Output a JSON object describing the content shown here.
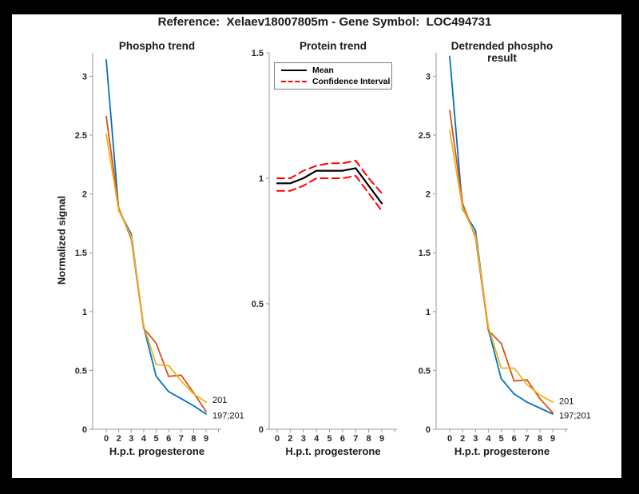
{
  "window": {
    "background": "#000000",
    "figure_background": "#ffffff"
  },
  "header": {
    "title": "Reference:  Xelaev18007805m - Gene Symbol:  LOC494731"
  },
  "colors": {
    "series_blue": "#0072BD",
    "series_orange": "#D95319",
    "series_yellow": "#EDB120",
    "mean_line": "#000000",
    "confidence_interval": "#FF0000",
    "axis_line": "#999999",
    "tick_text": "#262626"
  },
  "chart_data": [
    {
      "type": "line",
      "title": "Phospho trend",
      "xlabel": "H.p.t. progesterone",
      "ylabel": "Normalized signal",
      "categories": [
        "0",
        "2",
        "3",
        "4",
        "5",
        "6",
        "7",
        "8",
        "9"
      ],
      "ylim": [
        0,
        3.2
      ],
      "yticks": [
        "0",
        "0.5",
        "1",
        "1.5",
        "2",
        "2.5",
        "3"
      ],
      "grid": false,
      "series": [
        {
          "name": "197;201",
          "color": "#0072BD",
          "style": "solid",
          "width": 1.8,
          "values": [
            3.14,
            1.86,
            1.66,
            0.87,
            0.45,
            0.32,
            0.26,
            0.2,
            0.13
          ]
        },
        {
          "name": "197;201",
          "color": "#D95319",
          "style": "solid",
          "width": 1.8,
          "values": [
            2.66,
            1.88,
            1.62,
            0.86,
            0.73,
            0.45,
            0.46,
            0.31,
            0.15
          ]
        },
        {
          "name": "201",
          "color": "#EDB120",
          "style": "solid",
          "width": 1.8,
          "values": [
            2.51,
            1.86,
            1.64,
            0.88,
            0.55,
            0.54,
            0.41,
            0.3,
            0.23
          ]
        }
      ],
      "end_labels": [
        {
          "text": "201",
          "value": 0.25
        },
        {
          "text": "197;201",
          "value": 0.12
        }
      ]
    },
    {
      "type": "line",
      "title": "Protein trend",
      "xlabel": "H.p.t. progesterone",
      "ylabel": "",
      "categories": [
        "0",
        "2",
        "3",
        "4",
        "5",
        "6",
        "7",
        "8",
        "9"
      ],
      "ylim": [
        0,
        1.5
      ],
      "yticks": [
        "0",
        "0.5",
        "1",
        "1.5"
      ],
      "grid": false,
      "legend": [
        {
          "label": "Mean",
          "style": "solid",
          "color": "#000000"
        },
        {
          "label": "Confidence Interval",
          "style": "dashed",
          "color": "#FF0000"
        }
      ],
      "series": [
        {
          "name": "Mean",
          "color": "#000000",
          "style": "solid",
          "width": 2.2,
          "values": [
            0.98,
            0.98,
            1.0,
            1.03,
            1.03,
            1.03,
            1.04,
            0.97,
            0.9
          ]
        },
        {
          "name": "Confidence Interval upper",
          "color": "#FF0000",
          "style": "dashed",
          "width": 2,
          "values": [
            1.0,
            1.0,
            1.03,
            1.05,
            1.06,
            1.06,
            1.07,
            1.0,
            0.94
          ]
        },
        {
          "name": "Confidence Interval lower",
          "color": "#FF0000",
          "style": "dashed",
          "width": 2,
          "values": [
            0.95,
            0.95,
            0.97,
            1.0,
            1.0,
            1.0,
            1.01,
            0.94,
            0.87
          ]
        }
      ],
      "end_labels": []
    },
    {
      "type": "line",
      "title": "Detrended phospho result",
      "xlabel": "H.p.t. progesterone",
      "ylabel": "",
      "categories": [
        "0",
        "2",
        "3",
        "4",
        "5",
        "6",
        "7",
        "8",
        "9"
      ],
      "ylim": [
        0,
        3.2
      ],
      "yticks": [
        "0",
        "0.5",
        "1",
        "1.5",
        "2",
        "2.5",
        "3"
      ],
      "grid": false,
      "series": [
        {
          "name": "197;201",
          "color": "#0072BD",
          "style": "solid",
          "width": 1.8,
          "values": [
            3.17,
            1.87,
            1.69,
            0.85,
            0.43,
            0.3,
            0.23,
            0.18,
            0.13
          ]
        },
        {
          "name": "197;201",
          "color": "#D95319",
          "style": "solid",
          "width": 1.8,
          "values": [
            2.71,
            1.92,
            1.63,
            0.84,
            0.73,
            0.41,
            0.42,
            0.26,
            0.14
          ]
        },
        {
          "name": "201",
          "color": "#EDB120",
          "style": "solid",
          "width": 1.8,
          "values": [
            2.54,
            1.88,
            1.65,
            0.87,
            0.52,
            0.52,
            0.38,
            0.29,
            0.23
          ]
        }
      ],
      "end_labels": [
        {
          "text": "201",
          "value": 0.24
        },
        {
          "text": "197;201",
          "value": 0.12
        }
      ]
    }
  ]
}
